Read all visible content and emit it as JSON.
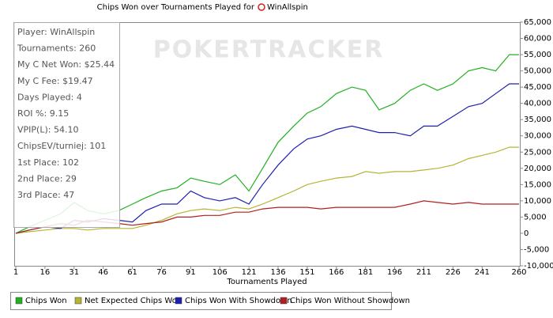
{
  "chart_data": {
    "type": "line",
    "title": "Chips Won over Tournaments Played for",
    "player": "WinAllspin",
    "watermark": "POKERTRACKER",
    "x_label": "Tournaments Played",
    "stats": [
      "Player: WinAllspin",
      "Tournaments: 260",
      "My C Net Won: $25.44",
      "My C Fee: $19.47",
      "Days Played: 4",
      "ROI %: 9.15",
      "VPIP(L): 54.10",
      "ChipsEV/turniej: 101",
      "1st Place: 102",
      "2nd Place: 29",
      "3rd Place: 47"
    ],
    "x": [
      1,
      8,
      16,
      24,
      31,
      38,
      46,
      54,
      61,
      68,
      76,
      84,
      91,
      98,
      106,
      114,
      121,
      128,
      136,
      144,
      151,
      158,
      166,
      174,
      181,
      188,
      196,
      204,
      211,
      218,
      226,
      234,
      241,
      248,
      255,
      260
    ],
    "series": [
      {
        "name": "Chips Won",
        "color": "#22b022",
        "values": [
          0,
          2000,
          4000,
          6000,
          9500,
          7000,
          6000,
          7000,
          9000,
          11000,
          13000,
          14000,
          17000,
          16000,
          15000,
          18000,
          13000,
          20000,
          28000,
          33000,
          37000,
          39000,
          43000,
          45000,
          44000,
          38000,
          40000,
          44000,
          46000,
          44000,
          46000,
          50000,
          51000,
          50000,
          55000,
          55000
        ]
      },
      {
        "name": "Net Expected Chips Won",
        "color": "#b5b534",
        "values": [
          0,
          500,
          1000,
          1500,
          1500,
          1000,
          1500,
          1500,
          1500,
          2500,
          4000,
          6000,
          7000,
          7500,
          7000,
          8000,
          7500,
          9000,
          11000,
          13000,
          15000,
          16000,
          17000,
          17500,
          19000,
          18500,
          19000,
          19000,
          19500,
          20000,
          21000,
          23000,
          24000,
          25000,
          26500,
          26500
        ]
      },
      {
        "name": "Chips Won With Showdown",
        "color": "#2020b0",
        "values": [
          0,
          1000,
          2000,
          1500,
          4000,
          3500,
          4500,
          4000,
          3500,
          7000,
          9000,
          9000,
          13000,
          11000,
          10000,
          11000,
          9000,
          15000,
          21000,
          26000,
          29000,
          30000,
          32000,
          33000,
          32000,
          31000,
          31000,
          30000,
          33000,
          33000,
          36000,
          39000,
          40000,
          43000,
          46000,
          46000
        ]
      },
      {
        "name": "Chips Won Without Showdown",
        "color": "#b02020",
        "values": [
          0,
          1000,
          2000,
          3000,
          2500,
          4000,
          3500,
          3000,
          2500,
          3000,
          3500,
          5000,
          5000,
          5500,
          5500,
          6500,
          6500,
          7500,
          8000,
          8000,
          8000,
          7500,
          8000,
          8000,
          8000,
          8000,
          8000,
          9000,
          10000,
          9500,
          9000,
          9500,
          9000,
          9000,
          9000,
          9000
        ]
      }
    ],
    "xlim": [
      1,
      260
    ],
    "xticks": [
      1,
      16,
      31,
      46,
      61,
      76,
      91,
      106,
      121,
      136,
      151,
      166,
      181,
      196,
      211,
      226,
      241,
      260
    ],
    "ylim": [
      -10000,
      65000
    ],
    "yticks": [
      {
        "value": -10000,
        "label": "-10,000"
      },
      {
        "value": -5000,
        "label": "-5,000"
      },
      0,
      {
        "value": 5000,
        "label": "5,000"
      },
      {
        "value": 10000,
        "label": "10,000"
      },
      {
        "value": 15000,
        "label": "15,000"
      },
      {
        "value": 20000,
        "label": "20,000"
      },
      {
        "value": 25000,
        "label": "25,000"
      },
      {
        "value": 30000,
        "label": "30,000"
      },
      {
        "value": 35000,
        "label": "35,000"
      },
      {
        "value": 40000,
        "label": "40,000"
      },
      {
        "value": 45000,
        "label": "45,000"
      },
      {
        "value": 50000,
        "label": "50,000"
      },
      {
        "value": 55000,
        "label": "55,000"
      },
      {
        "value": 60000,
        "label": "60,000"
      },
      {
        "value": 65000,
        "label": "65,000"
      }
    ],
    "grid": false,
    "legend": "bottom"
  }
}
